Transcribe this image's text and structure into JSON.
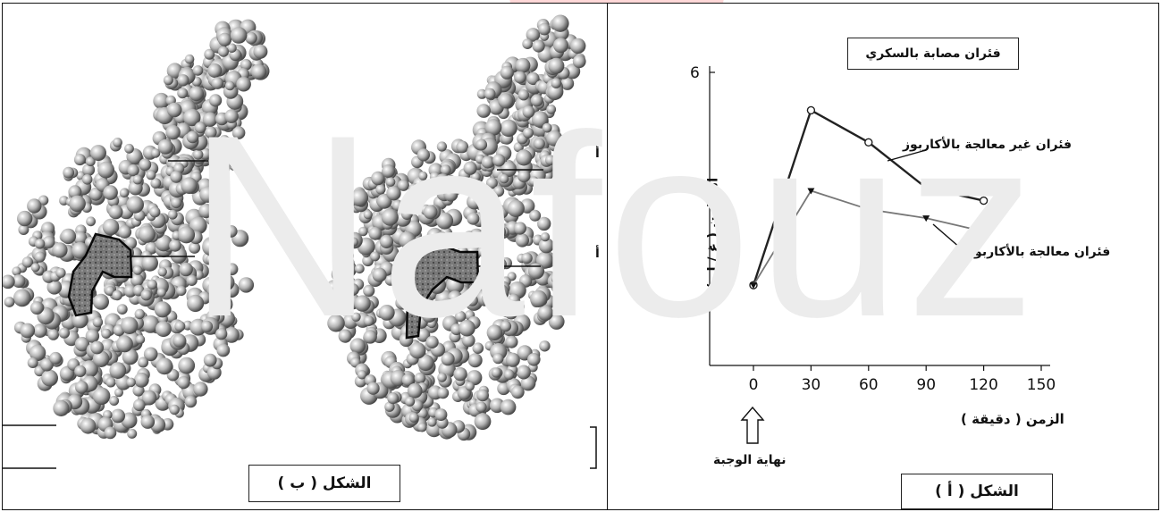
{
  "watermark": "Nafouz",
  "left_figure": {
    "caption": "الشكل ( ب )",
    "labels": [
      "أ",
      "أ"
    ]
  },
  "right_figure": {
    "caption": "الشكل ( أ )",
    "title": "فئران مصابة بالسكري",
    "series_labels": {
      "untreated": "فئران غير معالجة بالأكاربوز",
      "treated": "فئران معالجة بالأكاربوز"
    },
    "meal_end_label": "نهاية الوجبة",
    "chart_data": {
      "type": "line",
      "title": "فئران مصابة بالسكري",
      "xlabel": "الزمن ( دقيقة )",
      "ylabel": "التحلون ( غ / ل )",
      "xlim": [
        0,
        150
      ],
      "ylim": [
        1,
        6
      ],
      "x_ticks": [
        0,
        30,
        60,
        90,
        120,
        150
      ],
      "y_ticks": [
        2,
        4,
        6
      ],
      "series": [
        {
          "name": "فئران غير معالجة بالأكاربوز",
          "marker": "circle",
          "color": "#222222",
          "x": [
            0,
            30,
            60,
            90,
            120
          ],
          "y": [
            2.35,
            5.35,
            4.8,
            4.02,
            3.8
          ]
        },
        {
          "name": "فئران معالجة بالأكاربوز",
          "marker": "triangle-down",
          "color": "#777777",
          "x": [
            0,
            30,
            60,
            90,
            120
          ],
          "y": [
            2.35,
            3.97,
            3.65,
            3.5,
            3.27
          ]
        }
      ]
    }
  }
}
